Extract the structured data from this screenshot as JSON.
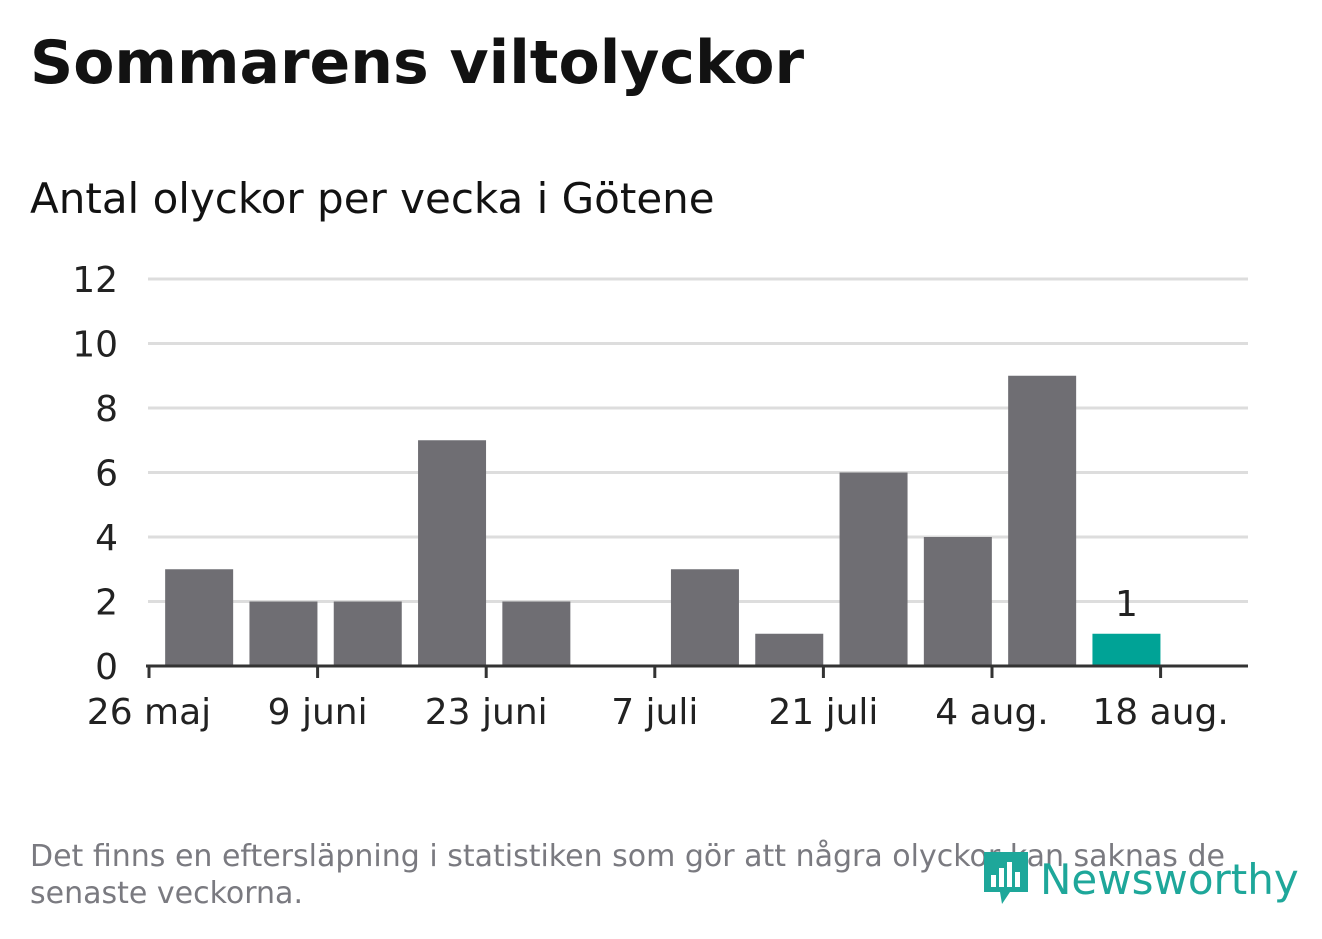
{
  "header": {
    "title": "Sommarens viltolyckor",
    "subtitle": "Antal olyckor per vecka i Götene"
  },
  "chart_data": {
    "type": "bar",
    "title": "Sommarens viltolyckor",
    "subtitle": "Antal olyckor per vecka i Götene",
    "xlabel": "",
    "ylabel": "",
    "ylim": [
      0,
      12
    ],
    "yticks": [
      0,
      2,
      4,
      6,
      8,
      10,
      12
    ],
    "xtick_labels": [
      "26 maj",
      "9 juni",
      "23 juni",
      "7 juli",
      "21 juli",
      "4 aug.",
      "18 aug."
    ],
    "values": [
      3,
      2,
      2,
      7,
      2,
      0,
      3,
      1,
      6,
      4,
      9,
      1
    ],
    "highlight_index": 11,
    "highlight_label": "1",
    "grid": true,
    "colors": {
      "bar": "#6f6e73",
      "highlight": "#00a396",
      "grid": "#dddddd",
      "axis": "#333333"
    }
  },
  "footer": {
    "note": "Det finns en eftersläpning i statistiken som gör att några olyckor kan saknas de senaste veckorna.",
    "brand": "Newsworthy",
    "brand_color": "#1ea79a",
    "brand_icon": "bar-chart-speech-icon"
  }
}
